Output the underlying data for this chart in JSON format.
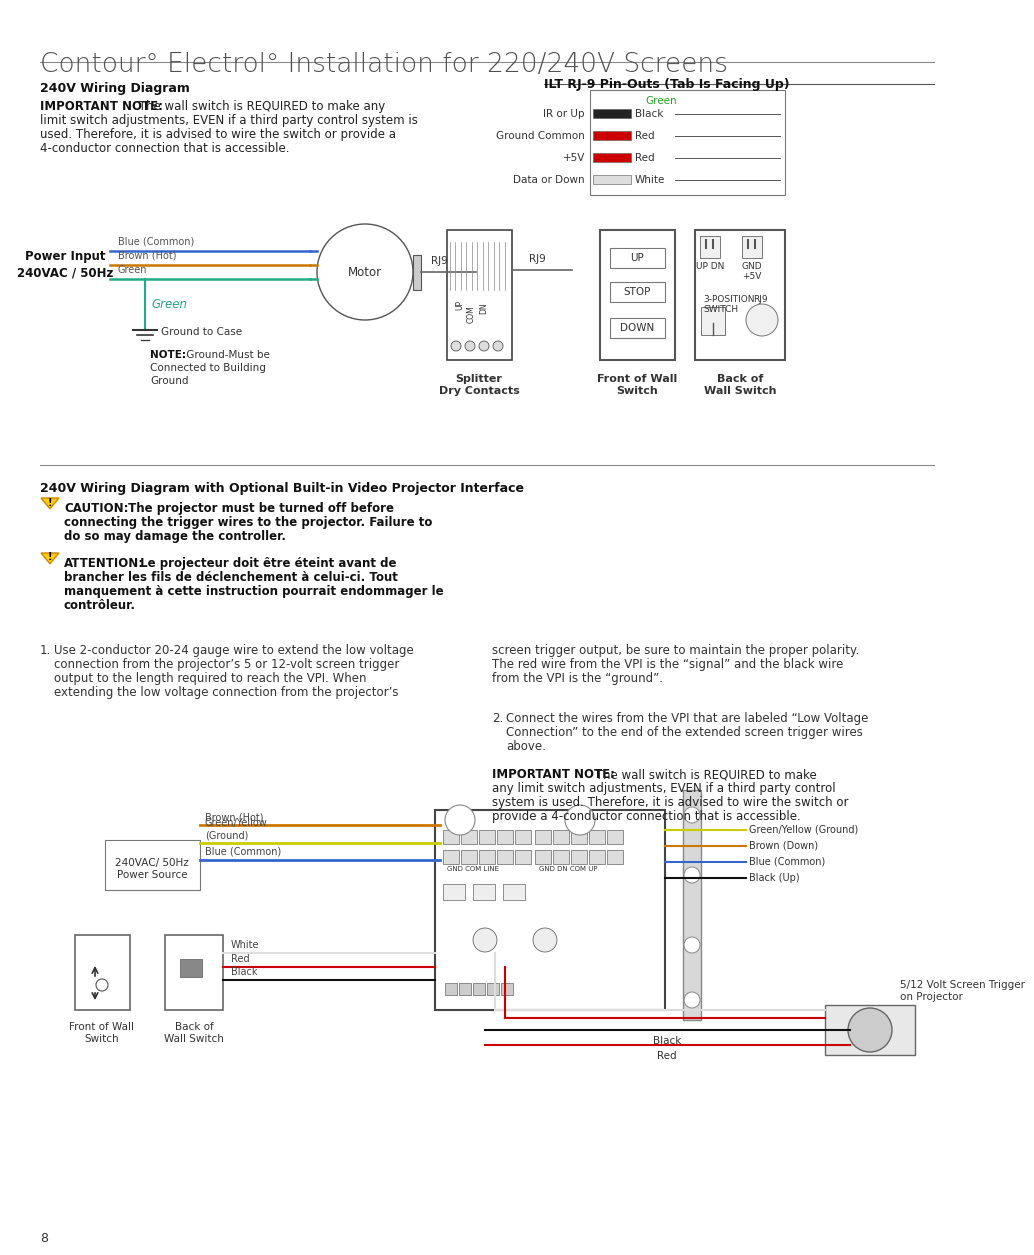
{
  "title": "Contour° Electrol° Installation for 220/240V Screens",
  "page_num": "8",
  "bg_color": "#ffffff",
  "title_color": "#505050",
  "section1_title": "240V Wiring Diagram",
  "section2_title": "ILT RJ-9 Pin-Outs (Tab Is Facing Up)",
  "imp_note_bold": "IMPORTANT NOTE:",
  "imp_note_rest": " The wall switch is REQUIRED to make any",
  "imp_note_lines": [
    "limit switch adjustments, EVEN if a third party control system is",
    "used. Therefore, it is advised to wire the switch or provide a",
    "4-conductor connection that is accessible."
  ],
  "power_input_label": "Power Input\n240VAC / 50Hz",
  "wire_labels_top": [
    "Blue (Common)",
    "Brown (Hot)",
    "Green"
  ],
  "wire_colors_top": [
    "#3366cc",
    "#cc7700",
    "#22aa88"
  ],
  "motor_label": "Motor",
  "rj9_label": "RJ9",
  "ground_label": "Green",
  "ground_note1": "Ground to Case",
  "ground_note2_bold": "NOTE:",
  "ground_note2_rest": " Ground-Must be\nConnected to Building\nGround",
  "splitter_label": "Splitter\nDry Contacts",
  "front_wall_switch_label": "Front of Wall\nSwitch",
  "back_wall_switch_label": "Back of\nWall Switch",
  "switch_buttons": [
    "UP",
    "STOP",
    "DOWN"
  ],
  "pin_labels": [
    "IR or Up",
    "Ground Common",
    "+5V",
    "Data or Down"
  ],
  "pin_color_names": [
    "Black",
    "Red",
    "Red",
    "White"
  ],
  "pin_color_hex": [
    "#222222",
    "#cc0000",
    "#cc0000",
    "#dddddd"
  ],
  "green_label": "Green",
  "back_switch_top_labels": [
    "UP DN",
    "GND\n+5V"
  ],
  "back_switch_mid_labels": [
    "3-POSITION\nSWITCH",
    "RJ9"
  ],
  "section3_title": "240V Wiring Diagram with Optional Built-in Video Projector Interface",
  "caution_lines": [
    "CAUTION: The projector must be turned off before",
    "connecting the trigger wires to the projector. Failure to",
    "do so may damage the controller."
  ],
  "attention_lines": [
    "ATTENTION: Le projecteur doit être éteint avant de",
    "brancher les fils de déclenchement à celui-ci. Tout",
    "manquement à cette instruction pourrait endommager le",
    "contrôleur."
  ],
  "step1_left_lines": [
    "Use 2-conductor 20-24 gauge wire to extend the low voltage",
    "connection from the projector’s 5 or 12-volt screen trigger",
    "output to the length required to reach the VPI. When",
    "extending the low voltage connection from the projector’s"
  ],
  "step1_right_lines": [
    "screen trigger output, be sure to maintain the proper polarity.",
    "The red wire from the VPI is the “signal” and the black wire",
    "from the VPI is the “ground”."
  ],
  "step2_lines": [
    "Connect the wires from the VPI that are labeled “Low Voltage",
    "Connection” to the end of the extended screen trigger wires",
    "above."
  ],
  "imp_note2_bold": "IMPORTANT NOTE:",
  "imp_note2_lines": [
    " The wall switch is REQUIRED to make",
    "any limit switch adjustments, EVEN if a third party control",
    "system is used. Therefore, it is advised to wire the switch or",
    "provide a 4-conductor connection that is accessible."
  ],
  "bottom_ps_label": "240VAC/ 50Hz\nPower Source",
  "bottom_wire_labels": [
    "Brown (Hot)",
    "Green/Yellow\n(Ground)",
    "Blue (Common)"
  ],
  "bottom_wire_colors": [
    "#cc7700",
    "#cccc00",
    "#3366cc"
  ],
  "right_wire_labels": [
    "Green/Yellow (Ground)",
    "Brown (Down)",
    "Blue (Common)",
    "Black (Up)"
  ],
  "right_wire_colors": [
    "#cccc00",
    "#cc7700",
    "#3366cc",
    "#111111"
  ],
  "projector_label": "5/12 Volt Screen Trigger\non Projector",
  "ws_wire_labels": [
    "White",
    "Red",
    "Black"
  ],
  "ws_wire_colors": [
    "#dddddd",
    "#cc0000",
    "#111111"
  ],
  "bottom_black_label": "Black",
  "bottom_red_label": "Red",
  "front_wall_switch_label2": "Front of Wall\nSwitch",
  "back_wall_switch_label2": "Back of\nWall Switch"
}
